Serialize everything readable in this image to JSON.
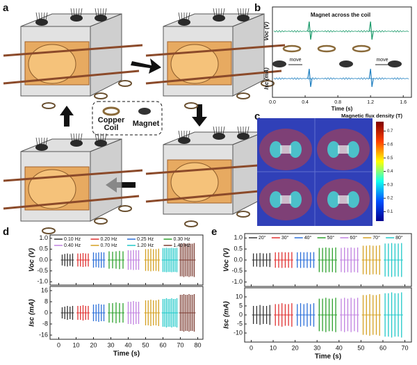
{
  "panel_labels": [
    "a",
    "b",
    "c",
    "d",
    "e"
  ],
  "panel_a": {
    "legend": [
      "Copper Coil",
      "Magnet"
    ]
  },
  "chart_data": [
    {
      "type": "trace",
      "xlabel": "Time (s)",
      "xlim": [
        0,
        1.7
      ],
      "xticks": [
        {
          "value": 0,
          "label": "0.0"
        },
        {
          "value": 0.4,
          "label": "0.4"
        },
        {
          "value": 0.8,
          "label": "0.8"
        },
        {
          "value": 1.2,
          "label": "1.2"
        },
        {
          "value": 1.6,
          "label": "1.6"
        }
      ],
      "annotation": "Magnet across the coil",
      "move_labels": [
        "move",
        "move"
      ],
      "series": [
        {
          "name": "Voc (V)",
          "color": "#1a9a6a",
          "x": [
            0.45,
            1.2
          ]
        },
        {
          "name": "Isc (mA)",
          "color": "#1f7fc0",
          "x": [
            0.45,
            1.2
          ]
        }
      ]
    },
    {
      "type": "colorbar",
      "title": "Magnetic flux density (T)",
      "ylim": [
        0.03,
        0.77
      ],
      "yticks": [
        0.1,
        0.2,
        0.3,
        0.4,
        0.5,
        0.6,
        0.7
      ]
    },
    {
      "type": "spike",
      "xlabel": "Time (s)",
      "xlim": [
        -5,
        83
      ],
      "xticks": [
        0,
        10,
        20,
        30,
        40,
        50,
        60,
        70,
        80
      ],
      "ylabel": "Voc (V)",
      "ylim": [
        -1.15,
        1.15
      ],
      "yticks": [
        {
          "value": -1,
          "label": "-1.0"
        },
        {
          "value": -0.5,
          "label": "-0.5"
        },
        {
          "value": 0,
          "label": "0.0"
        },
        {
          "value": 0.5,
          "label": "0.5"
        },
        {
          "value": 1,
          "label": "1.0"
        }
      ],
      "y2label": "Isc (mA)",
      "y2lim": [
        -19,
        19
      ],
      "y2ticks": [
        -16,
        -8,
        0,
        8,
        16
      ],
      "series": [
        {
          "name": "0.10 Hz",
          "color": "#333333",
          "x": [
            2,
            3.5,
            5,
            6.5,
            8
          ],
          "values": [
            0.25,
            0.28,
            0.3,
            0.27,
            0.3
          ],
          "values2": [
            4,
            4.5,
            5,
            4.5,
            5
          ]
        },
        {
          "name": "0.20 Hz",
          "color": "#e03030",
          "x": [
            11,
            12.5,
            14,
            15.5,
            17
          ],
          "values": [
            0.3,
            0.3,
            0.32,
            0.3,
            0.3
          ],
          "values2": [
            5,
            5,
            5.5,
            5,
            5
          ]
        },
        {
          "name": "0.25 Hz",
          "color": "#2a6ed8",
          "x": [
            20,
            21.5,
            23,
            24.5,
            26
          ],
          "values": [
            0.35,
            0.33,
            0.35,
            0.36,
            0.35
          ],
          "values2": [
            6,
            6,
            6.5,
            6,
            6
          ]
        },
        {
          "name": "0.30 Hz",
          "color": "#2ca02c",
          "x": [
            29,
            31,
            33,
            35,
            37
          ],
          "values": [
            0.4,
            0.38,
            0.4,
            0.42,
            0.4
          ],
          "values2": [
            7,
            7,
            7.5,
            7,
            7
          ]
        },
        {
          "name": "0.40 Hz",
          "color": "#c080e0",
          "x": [
            40,
            41.5,
            43,
            44.5,
            46
          ],
          "values": [
            0.45,
            0.44,
            0.46,
            0.45,
            0.45
          ],
          "values2": [
            8,
            8,
            8.5,
            8,
            8
          ]
        },
        {
          "name": "0.70 Hz",
          "color": "#d4a020",
          "x": [
            50,
            51.5,
            53,
            54.5,
            56,
            57.5
          ],
          "values": [
            0.5,
            0.5,
            0.52,
            0.5,
            0.5,
            0.52
          ],
          "values2": [
            9,
            9,
            9.5,
            9,
            9,
            9.5
          ]
        },
        {
          "name": "1.20 Hz",
          "color": "#1fc8c8",
          "x": [
            60,
            61,
            62,
            63,
            64,
            65,
            66,
            67,
            68
          ],
          "values": [
            0.55,
            0.55,
            0.56,
            0.55,
            0.55,
            0.56,
            0.55,
            0.55,
            0.56
          ],
          "values2": [
            10,
            10,
            10.5,
            10,
            10,
            10.5,
            10,
            10,
            10.5
          ]
        },
        {
          "name": "1.40 Hz",
          "color": "#7b3a30",
          "x": [
            70,
            71,
            72,
            73,
            74,
            75,
            76,
            77,
            78
          ],
          "values": [
            0.75,
            0.75,
            0.78,
            0.75,
            0.75,
            0.78,
            0.75,
            0.75,
            0.78
          ],
          "values2": [
            13,
            13,
            13.5,
            13,
            13,
            13.5,
            13,
            13,
            13.5
          ]
        }
      ]
    },
    {
      "type": "spike",
      "xlabel": "Time (s)",
      "xlim": [
        -3,
        73
      ],
      "xticks": [
        0,
        10,
        20,
        30,
        40,
        50,
        60,
        70
      ],
      "ylabel": "Voc (V)",
      "ylim": [
        -1.2,
        1.2
      ],
      "yticks": [
        {
          "value": -1,
          "label": "-1.0"
        },
        {
          "value": -0.5,
          "label": "-0.5"
        },
        {
          "value": 0,
          "label": "0.0"
        },
        {
          "value": 0.5,
          "label": "0.5"
        },
        {
          "value": 1,
          "label": "1.0"
        }
      ],
      "y2label": "Isc (mA)",
      "y2lim": [
        -15,
        15
      ],
      "y2ticks": [
        -10,
        -5,
        0,
        5,
        10
      ],
      "series": [
        {
          "name": "20°",
          "color": "#333333",
          "x": [
            1,
            2.5,
            4,
            5.5,
            7,
            8.5
          ],
          "values": [
            0.3,
            0.3,
            0.32,
            0.3,
            0.3,
            0.32
          ],
          "values2": [
            5,
            5,
            5.5,
            5,
            5,
            5.5
          ]
        },
        {
          "name": "30°",
          "color": "#e03030",
          "x": [
            11,
            12.5,
            14,
            15.5,
            17,
            18.5
          ],
          "values": [
            0.35,
            0.35,
            0.36,
            0.35,
            0.35,
            0.36
          ],
          "values2": [
            6,
            6,
            6.5,
            6,
            6,
            6.5
          ]
        },
        {
          "name": "40°",
          "color": "#2a6ed8",
          "x": [
            21,
            22.5,
            24,
            25.5,
            27,
            28.5
          ],
          "values": [
            0.35,
            0.36,
            0.35,
            0.36,
            0.35,
            0.36
          ],
          "values2": [
            6,
            6.5,
            6,
            6.5,
            6,
            6.5
          ]
        },
        {
          "name": "50°",
          "color": "#2ca02c",
          "x": [
            31,
            32.5,
            34,
            35.5,
            37,
            38.5
          ],
          "values": [
            0.55,
            0.55,
            0.57,
            0.55,
            0.55,
            0.57
          ],
          "values2": [
            9,
            9,
            9.5,
            9,
            9,
            9.5
          ]
        },
        {
          "name": "60°",
          "color": "#c080e0",
          "x": [
            41,
            42.5,
            44,
            45.5,
            47,
            48.5
          ],
          "values": [
            0.55,
            0.57,
            0.55,
            0.57,
            0.55,
            0.57
          ],
          "values2": [
            9,
            9.5,
            9,
            9.5,
            9,
            9.5
          ]
        },
        {
          "name": "70°",
          "color": "#d4a020",
          "x": [
            51,
            52.5,
            54,
            55.5,
            57,
            58.5
          ],
          "values": [
            0.65,
            0.65,
            0.67,
            0.65,
            0.65,
            0.67
          ],
          "values2": [
            11,
            11,
            11.5,
            11,
            11,
            11.5
          ]
        },
        {
          "name": "80°",
          "color": "#1fc8c8",
          "x": [
            61,
            62.5,
            64,
            65.5,
            67,
            68.5
          ],
          "values": [
            0.75,
            0.75,
            0.77,
            0.75,
            0.75,
            0.77
          ],
          "values2": [
            12,
            12,
            12.5,
            12,
            12,
            12.5
          ]
        }
      ]
    }
  ]
}
